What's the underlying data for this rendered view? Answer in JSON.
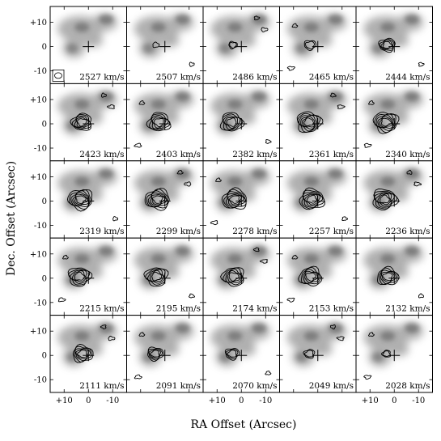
{
  "figure": {
    "y_axis_label": "Dec. Offset (Arcsec)",
    "x_axis_label": "RA Offset (Arcsec)",
    "y_ticks": [
      "+10",
      "0",
      "-10"
    ],
    "x_ticks": [
      "+10",
      "0",
      "-10"
    ],
    "colors": {
      "ink": "#000000",
      "background": "#ffffff",
      "galaxy_gray": "#6e6e6e"
    },
    "beam_marker_icon": "beam-ellipse-icon",
    "reference_marker_icon": "crosshair-icon"
  },
  "panels": [
    {
      "velocity": "2527 km/s",
      "emission": 0
    },
    {
      "velocity": "2507 km/s",
      "emission": 0.15
    },
    {
      "velocity": "2486 km/s",
      "emission": 0.25
    },
    {
      "velocity": "2465 km/s",
      "emission": 0.4
    },
    {
      "velocity": "2444 km/s",
      "emission": 0.6
    },
    {
      "velocity": "2423 km/s",
      "emission": 0.8
    },
    {
      "velocity": "2403 km/s",
      "emission": 0.9
    },
    {
      "velocity": "2382 km/s",
      "emission": 0.9
    },
    {
      "velocity": "2361 km/s",
      "emission": 1
    },
    {
      "velocity": "2340 km/s",
      "emission": 1
    },
    {
      "velocity": "2319 km/s",
      "emission": 1
    },
    {
      "velocity": "2299 km/s",
      "emission": 1
    },
    {
      "velocity": "2278 km/s",
      "emission": 1
    },
    {
      "velocity": "2257 km/s",
      "emission": 1
    },
    {
      "velocity": "2236 km/s",
      "emission": 1
    },
    {
      "velocity": "2215 km/s",
      "emission": 0.9
    },
    {
      "velocity": "2195 km/s",
      "emission": 0.9
    },
    {
      "velocity": "2174 km/s",
      "emission": 0.9
    },
    {
      "velocity": "2153 km/s",
      "emission": 0.9
    },
    {
      "velocity": "2132 km/s",
      "emission": 0.85
    },
    {
      "velocity": "2111 km/s",
      "emission": 0.8
    },
    {
      "velocity": "2091 km/s",
      "emission": 0.6
    },
    {
      "velocity": "2070 km/s",
      "emission": 0.5
    },
    {
      "velocity": "2049 km/s",
      "emission": 0.35
    },
    {
      "velocity": "2028 km/s",
      "emission": 0.25
    }
  ]
}
